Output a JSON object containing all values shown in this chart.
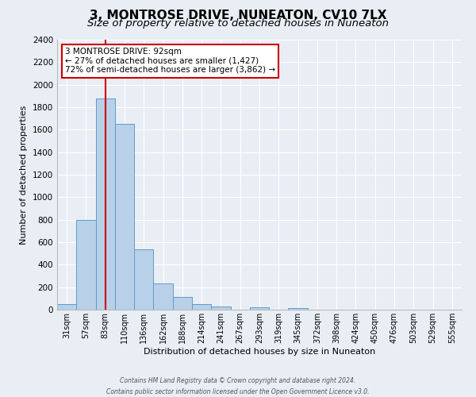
{
  "title": "3, MONTROSE DRIVE, NUNEATON, CV10 7LX",
  "subtitle": "Size of property relative to detached houses in Nuneaton",
  "xlabel": "Distribution of detached houses by size in Nuneaton",
  "ylabel": "Number of detached properties",
  "bar_labels": [
    "31sqm",
    "57sqm",
    "83sqm",
    "110sqm",
    "136sqm",
    "162sqm",
    "188sqm",
    "214sqm",
    "241sqm",
    "267sqm",
    "293sqm",
    "319sqm",
    "345sqm",
    "372sqm",
    "398sqm",
    "424sqm",
    "450sqm",
    "476sqm",
    "503sqm",
    "529sqm",
    "555sqm"
  ],
  "bar_values": [
    50,
    800,
    1880,
    1650,
    540,
    235,
    110,
    50,
    30,
    0,
    18,
    0,
    12,
    0,
    0,
    0,
    0,
    0,
    0,
    0,
    0
  ],
  "bar_color": "#b8d0e8",
  "bar_edge_color": "#5e9ec9",
  "vline_x": 2,
  "vline_color": "#cc0000",
  "ylim": [
    0,
    2400
  ],
  "yticks": [
    0,
    200,
    400,
    600,
    800,
    1000,
    1200,
    1400,
    1600,
    1800,
    2000,
    2200,
    2400
  ],
  "annotation_title": "3 MONTROSE DRIVE: 92sqm",
  "annotation_line1": "← 27% of detached houses are smaller (1,427)",
  "annotation_line2": "72% of semi-detached houses are larger (3,862) →",
  "annotation_box_color": "#ffffff",
  "annotation_box_edge": "#cc0000",
  "footer_line1": "Contains HM Land Registry data © Crown copyright and database right 2024.",
  "footer_line2": "Contains public sector information licensed under the Open Government Licence v3.0.",
  "background_color": "#e8eef4",
  "plot_background": "#e8eef4",
  "grid_color": "#ffffff",
  "title_fontsize": 11,
  "subtitle_fontsize": 9.5
}
